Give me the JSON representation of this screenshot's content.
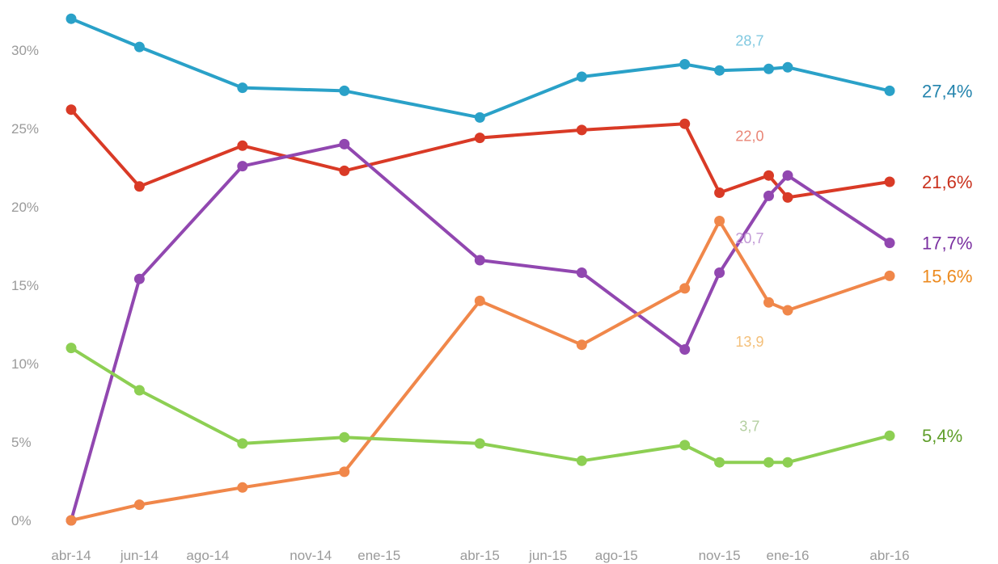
{
  "chart_data": {
    "type": "line",
    "title": "",
    "xlabel": "",
    "ylabel": "",
    "ylim": [
      0,
      30
    ],
    "y_ticks": [
      "0%",
      "5%",
      "10%",
      "15%",
      "20%",
      "25%",
      "30%"
    ],
    "x_tick_labels": [
      "abr-14",
      "jun-14",
      "ago-14",
      "nov-14",
      "ene-15",
      "abr-15",
      "jun-15",
      "ago-15",
      "nov-15",
      "ene-16",
      "abr-16"
    ],
    "x_tick_dates": [
      "2014-04-01",
      "2014-06-01",
      "2014-08-01",
      "2014-11-01",
      "2015-01-01",
      "2015-04-01",
      "2015-06-01",
      "2015-08-01",
      "2015-11-01",
      "2016-01-01",
      "2016-04-01"
    ],
    "grid": false,
    "legend": "none",
    "series": [
      {
        "color": "#2aa1c8",
        "end_color": "#2484ad",
        "end_label": "27,4%",
        "annotation": "28,7",
        "annotation_color": "#7fc8e0",
        "annotation_date": "2015-11-28",
        "annotation_value": 30.6,
        "points": [
          {
            "date": "2014-04-01",
            "value": 32.0
          },
          {
            "date": "2014-06-01",
            "value": 30.2
          },
          {
            "date": "2014-09-01",
            "value": 27.6
          },
          {
            "date": "2014-12-01",
            "value": 27.4
          },
          {
            "date": "2015-04-01",
            "value": 25.7
          },
          {
            "date": "2015-07-01",
            "value": 28.3
          },
          {
            "date": "2015-10-01",
            "value": 29.1
          },
          {
            "date": "2015-11-01",
            "value": 28.7
          },
          {
            "date": "2015-12-15",
            "value": 28.8
          },
          {
            "date": "2016-01-01",
            "value": 28.9
          },
          {
            "date": "2016-04-01",
            "value": 27.4
          }
        ]
      },
      {
        "color": "#d93a26",
        "end_color": "#c9301c",
        "end_label": "21,6%",
        "annotation": "22,0",
        "annotation_color": "#e98576",
        "annotation_date": "2015-11-28",
        "annotation_value": 24.5,
        "points": [
          {
            "date": "2014-04-01",
            "value": 26.2
          },
          {
            "date": "2014-06-01",
            "value": 21.3
          },
          {
            "date": "2014-09-01",
            "value": 23.9
          },
          {
            "date": "2014-12-01",
            "value": 22.3
          },
          {
            "date": "2015-04-01",
            "value": 24.4
          },
          {
            "date": "2015-07-01",
            "value": 24.9
          },
          {
            "date": "2015-10-01",
            "value": 25.3
          },
          {
            "date": "2015-11-01",
            "value": 20.9
          },
          {
            "date": "2015-12-15",
            "value": 22.0
          },
          {
            "date": "2016-01-01",
            "value": 20.6
          },
          {
            "date": "2016-04-01",
            "value": 21.6
          }
        ]
      },
      {
        "color": "#9147b0",
        "end_color": "#7a2fa0",
        "end_label": "17,7%",
        "annotation": "20,7",
        "annotation_color": "#c29ad6",
        "annotation_date": "2015-11-28",
        "annotation_value": 18.0,
        "points": [
          {
            "date": "2014-04-01",
            "value": 0.0
          },
          {
            "date": "2014-06-01",
            "value": 15.4
          },
          {
            "date": "2014-09-01",
            "value": 22.6
          },
          {
            "date": "2014-12-01",
            "value": 24.0
          },
          {
            "date": "2015-04-01",
            "value": 16.6
          },
          {
            "date": "2015-07-01",
            "value": 15.8
          },
          {
            "date": "2015-10-01",
            "value": 10.9
          },
          {
            "date": "2015-11-01",
            "value": 15.8
          },
          {
            "date": "2015-12-15",
            "value": 20.7
          },
          {
            "date": "2016-01-01",
            "value": 22.0
          },
          {
            "date": "2016-04-01",
            "value": 17.7
          }
        ]
      },
      {
        "color": "#f0874a",
        "end_color": "#ec8a1e",
        "end_label": "15,6%",
        "annotation": "13,9",
        "annotation_color": "#f4c07a",
        "annotation_date": "2015-11-28",
        "annotation_value": 11.4,
        "points": [
          {
            "date": "2014-04-01",
            "value": 0.0
          },
          {
            "date": "2014-06-01",
            "value": 1.0
          },
          {
            "date": "2014-09-01",
            "value": 2.1
          },
          {
            "date": "2014-12-01",
            "value": 3.1
          },
          {
            "date": "2015-04-01",
            "value": 14.0
          },
          {
            "date": "2015-07-01",
            "value": 11.2
          },
          {
            "date": "2015-10-01",
            "value": 14.8
          },
          {
            "date": "2015-11-01",
            "value": 19.1
          },
          {
            "date": "2015-12-15",
            "value": 13.9
          },
          {
            "date": "2016-01-01",
            "value": 13.4
          },
          {
            "date": "2016-04-01",
            "value": 15.6
          }
        ]
      },
      {
        "color": "#8dcf53",
        "end_color": "#5f9e2a",
        "end_label": "5,4%",
        "annotation": "3,7",
        "annotation_color": "#b4cfa0",
        "annotation_date": "2015-11-28",
        "annotation_value": 6.0,
        "points": [
          {
            "date": "2014-04-01",
            "value": 11.0
          },
          {
            "date": "2014-06-01",
            "value": 8.3
          },
          {
            "date": "2014-09-01",
            "value": 4.9
          },
          {
            "date": "2014-12-01",
            "value": 5.3
          },
          {
            "date": "2015-04-01",
            "value": 4.9
          },
          {
            "date": "2015-07-01",
            "value": 3.8
          },
          {
            "date": "2015-10-01",
            "value": 4.8
          },
          {
            "date": "2015-11-01",
            "value": 3.7
          },
          {
            "date": "2015-12-15",
            "value": 3.7
          },
          {
            "date": "2016-01-01",
            "value": 3.7
          },
          {
            "date": "2016-04-01",
            "value": 5.4
          }
        ]
      }
    ]
  }
}
